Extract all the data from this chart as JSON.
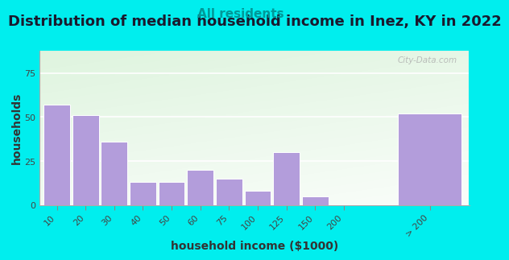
{
  "title": "Distribution of median household income in Inez, KY in 2022",
  "subtitle": "All residents",
  "xlabel": "household income ($1000)",
  "ylabel": "households",
  "background_color": "#00EEEE",
  "bar_color": "#b39ddb",
  "bar_edge_color": "#ffffff",
  "categories": [
    "10",
    "20",
    "30",
    "40",
    "50",
    "60",
    "75",
    "100",
    "125",
    "150",
    "200",
    "> 200"
  ],
  "values": [
    57,
    51,
    36,
    13,
    13,
    20,
    15,
    8,
    30,
    5,
    0,
    52
  ],
  "ylim": [
    0,
    88
  ],
  "yticks": [
    0,
    25,
    50,
    75
  ],
  "title_fontsize": 13,
  "subtitle_fontsize": 11,
  "axis_label_fontsize": 10,
  "tick_fontsize": 8,
  "title_color": "#1a1a2e",
  "subtitle_color": "#009999",
  "axis_label_color": "#333333",
  "watermark": "City-Data.com",
  "plot_bg_colors": [
    "#e8f5e2",
    "#f8fff8",
    "#ffffff"
  ],
  "grid_color": "#ffffff",
  "spine_color": "#00EEEE"
}
